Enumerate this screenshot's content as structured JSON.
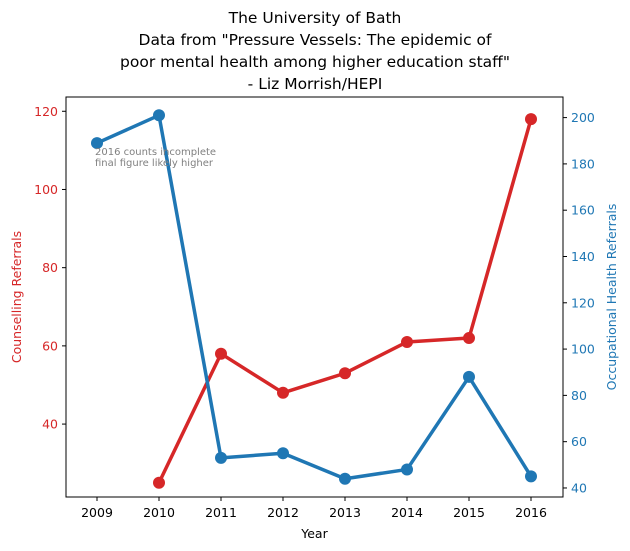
{
  "chart_data": {
    "type": "line",
    "title_lines": [
      "The University of Bath",
      "Data from \"Pressure Vessels: The epidemic of",
      "poor mental health among higher education staff\"",
      "- Liz Morrish/HEPI"
    ],
    "xlabel": "Year",
    "categories": [
      "2009",
      "2010",
      "2011",
      "2012",
      "2013",
      "2014",
      "2015",
      "2016"
    ],
    "y_left": {
      "label": "Counselling Referrals",
      "color": "#d62728",
      "ticks": [
        40,
        60,
        80,
        100,
        120
      ],
      "ylim": [
        21.35,
        123.65
      ]
    },
    "y_right": {
      "label": "Occupational Health Referrals",
      "color": "#1f77b4",
      "ticks": [
        40,
        60,
        80,
        100,
        120,
        140,
        160,
        180,
        200
      ],
      "ylim": [
        36.1,
        208.9
      ]
    },
    "series": [
      {
        "axis": "left",
        "color": "#d62728",
        "x": [
          "2010",
          "2011",
          "2012",
          "2013",
          "2014",
          "2015",
          "2016"
        ],
        "values": [
          25,
          58,
          48,
          53,
          61,
          62,
          118
        ]
      },
      {
        "axis": "right",
        "color": "#1f77b4",
        "x": [
          "2009",
          "2010",
          "2011",
          "2012",
          "2013",
          "2014",
          "2015",
          "2016"
        ],
        "values": [
          189,
          201,
          53,
          55,
          44,
          48,
          88,
          45
        ]
      }
    ],
    "annotation": {
      "lines": [
        "2016 counts incomplete",
        "final figure likely higher"
      ],
      "color": "#808080"
    },
    "grid": false,
    "legend": "none"
  }
}
